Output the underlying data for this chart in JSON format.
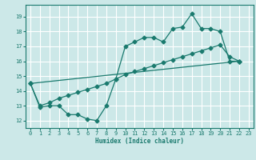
{
  "xlabel": "Humidex (Indice chaleur)",
  "bg_color": "#cce8e8",
  "grid_color": "#ffffff",
  "line_color": "#1a7a6e",
  "xlim": [
    -0.5,
    23.5
  ],
  "ylim": [
    11.5,
    19.8
  ],
  "xticks": [
    0,
    1,
    2,
    3,
    4,
    5,
    6,
    7,
    8,
    9,
    10,
    11,
    12,
    13,
    14,
    15,
    16,
    17,
    18,
    19,
    20,
    21,
    22,
    23
  ],
  "yticks": [
    12,
    13,
    14,
    15,
    16,
    17,
    18,
    19
  ],
  "line1_x": [
    0,
    1,
    2,
    3,
    4,
    5,
    6,
    7,
    8,
    9,
    10,
    11,
    12,
    13,
    14,
    15,
    16,
    17,
    18,
    19,
    20,
    21,
    22
  ],
  "line1_y": [
    14.5,
    12.9,
    13.0,
    13.0,
    12.4,
    12.4,
    12.1,
    12.0,
    13.0,
    14.8,
    17.0,
    17.3,
    17.6,
    17.6,
    17.3,
    18.2,
    18.3,
    19.2,
    18.2,
    18.2,
    18.0,
    16.0,
    16.0
  ],
  "line2_x": [
    0,
    22
  ],
  "line2_y": [
    14.5,
    16.0
  ],
  "line3_x": [
    0,
    1,
    2,
    3,
    4,
    5,
    6,
    7,
    8,
    9,
    10,
    11,
    12,
    13,
    14,
    15,
    16,
    17,
    18,
    19,
    20,
    21,
    22
  ],
  "line3_y": [
    14.5,
    13.0,
    13.2,
    13.5,
    13.7,
    13.9,
    14.1,
    14.3,
    14.5,
    14.8,
    15.1,
    15.3,
    15.5,
    15.7,
    15.9,
    16.1,
    16.3,
    16.5,
    16.7,
    16.9,
    17.1,
    16.3,
    16.0
  ],
  "figsize": [
    3.2,
    2.0
  ],
  "dpi": 100
}
